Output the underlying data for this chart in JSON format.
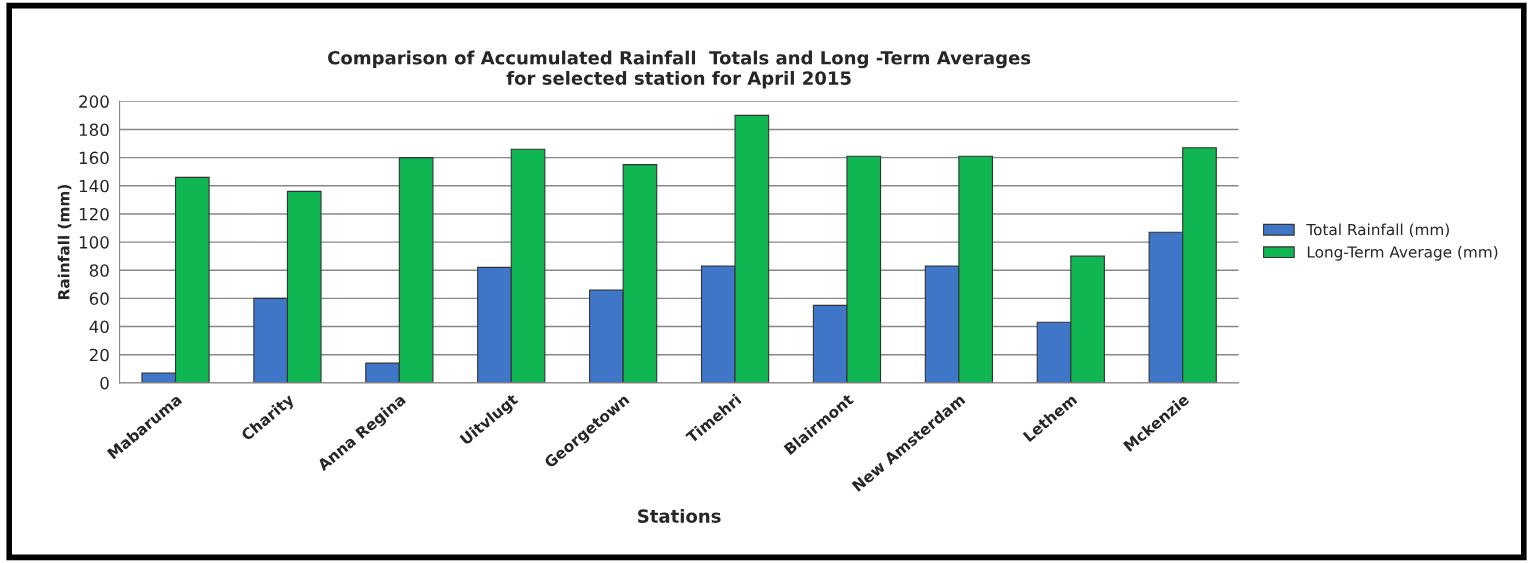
{
  "chart_data": {
    "type": "bar",
    "title": "Comparison of Accumulated Rainfall  Totals and Long -Term Averages\nfor selected station for April 2015",
    "xlabel": "Stations",
    "ylabel": "Rainfall (mm)",
    "categories": [
      "Mabaruma",
      "Charity",
      "Anna Regina",
      "Uitvlugt",
      "Georgetown",
      "Timehri",
      "Blairmont",
      "New Amsterdam",
      "Lethem",
      "Mckenzie"
    ],
    "series": [
      {
        "name": "Total Rainfall (mm)",
        "color": "#3f76c8",
        "values": [
          7,
          60,
          14,
          82,
          66,
          83,
          55,
          83,
          43,
          107
        ]
      },
      {
        "name": "Long-Term Average (mm)",
        "color": "#10b652",
        "values": [
          146,
          136,
          160,
          166,
          155,
          190,
          161,
          161,
          90,
          167
        ]
      }
    ],
    "ylim": [
      0,
      200
    ],
    "yticks": [
      0,
      20,
      40,
      60,
      80,
      100,
      120,
      140,
      160,
      180,
      200
    ],
    "grid": "y",
    "legend": "right"
  }
}
